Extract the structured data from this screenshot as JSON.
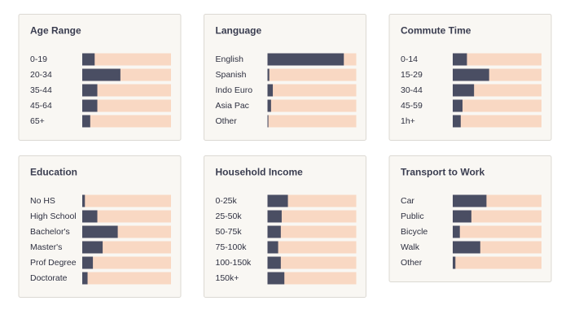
{
  "chart_data": [
    {
      "type": "bar",
      "title": "Age Range",
      "categories": [
        "0-19",
        "20-34",
        "35-44",
        "45-64",
        "65+"
      ],
      "values": [
        14,
        43,
        17,
        17,
        9
      ],
      "color": "#4a4e63",
      "xlim": [
        0,
        100
      ]
    },
    {
      "type": "bar",
      "title": "Language",
      "categories": [
        "English",
        "Spanish",
        "Indo Euro",
        "Asia Pac",
        "Other"
      ],
      "values": [
        86,
        2,
        6,
        4,
        1
      ],
      "color": "#4a4e63",
      "xlim": [
        0,
        100
      ]
    },
    {
      "type": "bar",
      "title": "Commute Time",
      "categories": [
        "0-14",
        "15-29",
        "30-44",
        "45-59",
        "1h+"
      ],
      "values": [
        16,
        41,
        24,
        11,
        9
      ],
      "color": "#4a4e63",
      "xlim": [
        0,
        100
      ]
    },
    {
      "type": "bar",
      "title": "Education",
      "categories": [
        "No HS",
        "High School",
        "Bachelor's",
        "Master's",
        "Prof Degree",
        "Doctorate"
      ],
      "values": [
        3,
        17,
        40,
        23,
        12,
        6
      ],
      "color": "#4a4e63",
      "xlim": [
        0,
        100
      ]
    },
    {
      "type": "bar",
      "title": "Household Income",
      "categories": [
        "0-25k",
        "25-50k",
        "50-75k",
        "75-100k",
        "100-150k",
        "150k+"
      ],
      "values": [
        23,
        16,
        15,
        12,
        15,
        19
      ],
      "color": "#4a4e63",
      "xlim": [
        0,
        100
      ]
    },
    {
      "type": "bar",
      "title": "Transport to Work",
      "categories": [
        "Car",
        "Public",
        "Bicycle",
        "Walk",
        "Other"
      ],
      "values": [
        38,
        21,
        8,
        31,
        3
      ],
      "color": "#4a4e63",
      "xlim": [
        0,
        100
      ]
    }
  ]
}
